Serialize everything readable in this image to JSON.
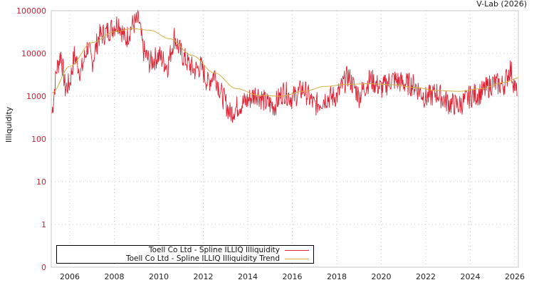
{
  "header": {
    "credit": "V-Lab (2026)"
  },
  "chart_data": {
    "type": "line",
    "title": "",
    "xlabel": "",
    "ylabel": "Illiquidity",
    "yscale": "log",
    "y_ticks": [
      "100000",
      "10000",
      "1000",
      "100",
      "10",
      "1",
      "0"
    ],
    "x_ticks": [
      "2006",
      "2008",
      "2010",
      "2012",
      "2014",
      "2016",
      "2018",
      "2020",
      "2022",
      "2024",
      "2026"
    ],
    "xlim": [
      2005.2,
      2026.2
    ],
    "ylim": [
      0.1,
      100000
    ],
    "grid": true,
    "legend_position": "bottom-left inside",
    "series": [
      {
        "name": "Toell Co Ltd - Spline ILLIQ Illiquidity",
        "color": "#dd2233",
        "x": [
          2005.2,
          2005.4,
          2005.6,
          2005.8,
          2006.0,
          2006.2,
          2006.5,
          2006.8,
          2007.0,
          2007.3,
          2007.6,
          2007.9,
          2008.2,
          2008.5,
          2008.8,
          2009.1,
          2009.3,
          2009.6,
          2010.0,
          2010.4,
          2010.7,
          2011.0,
          2011.3,
          2011.6,
          2011.9,
          2012.2,
          2012.5,
          2012.8,
          2013.2,
          2013.6,
          2014.0,
          2014.4,
          2014.8,
          2015.2,
          2015.6,
          2016.0,
          2016.5,
          2017.0,
          2017.5,
          2018.0,
          2018.5,
          2019.0,
          2019.5,
          2020.0,
          2020.5,
          2021.0,
          2021.5,
          2022.0,
          2022.5,
          2023.0,
          2023.5,
          2024.0,
          2024.5,
          2025.0,
          2025.5,
          2025.8,
          2026.1
        ],
        "values": [
          400,
          4000,
          10000,
          1500,
          2000,
          9000,
          3500,
          15000,
          6000,
          25000,
          30000,
          40000,
          55000,
          20000,
          45000,
          60000,
          12000,
          6000,
          9000,
          5000,
          25000,
          10000,
          6000,
          4000,
          5000,
          2000,
          3500,
          1200,
          400,
          600,
          800,
          1200,
          700,
          600,
          1300,
          900,
          1500,
          600,
          900,
          1000,
          3000,
          1000,
          2500,
          1500,
          2500,
          2000,
          1800,
          900,
          1200,
          700,
          600,
          1000,
          1200,
          2000,
          1800,
          4500,
          1000
        ]
      },
      {
        "name": "Toell Co Ltd - Spline ILLIQ Illiquidity Trend",
        "color": "#d4b040",
        "x": [
          2005.2,
          2006.0,
          2007.0,
          2008.0,
          2008.8,
          2009.6,
          2010.5,
          2011.5,
          2012.5,
          2013.5,
          2014.5,
          2015.5,
          2016.5,
          2017.5,
          2018.5,
          2019.5,
          2020.5,
          2021.5,
          2022.5,
          2023.5,
          2024.5,
          2025.5,
          2026.2
        ],
        "values": [
          1200,
          5000,
          18000,
          32000,
          38000,
          35000,
          22000,
          9000,
          3500,
          1500,
          1050,
          1000,
          1300,
          1700,
          1900,
          1950,
          1850,
          1600,
          1350,
          1300,
          1500,
          2100,
          2700
        ]
      }
    ]
  },
  "legend": {
    "items": [
      {
        "label": "Toell Co Ltd - Spline ILLIQ Illiquidity",
        "color": "#dd2233"
      },
      {
        "label": "Toell Co Ltd - Spline ILLIQ Illiquidity Trend",
        "color": "#d4b040"
      }
    ]
  }
}
